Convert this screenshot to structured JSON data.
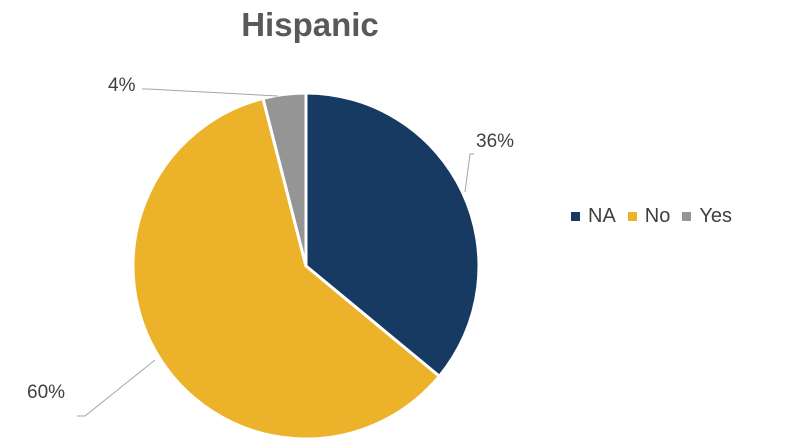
{
  "chart_data": {
    "type": "pie",
    "title": "Hispanic",
    "slices": [
      {
        "label": "NA",
        "value": 36,
        "display": "36%",
        "color": "#173a63"
      },
      {
        "label": "No",
        "value": 60,
        "display": "60%",
        "color": "#ecb32a"
      },
      {
        "label": "Yes",
        "value": 4,
        "display": "4%",
        "color": "#959595"
      }
    ],
    "legend_position": "right"
  }
}
